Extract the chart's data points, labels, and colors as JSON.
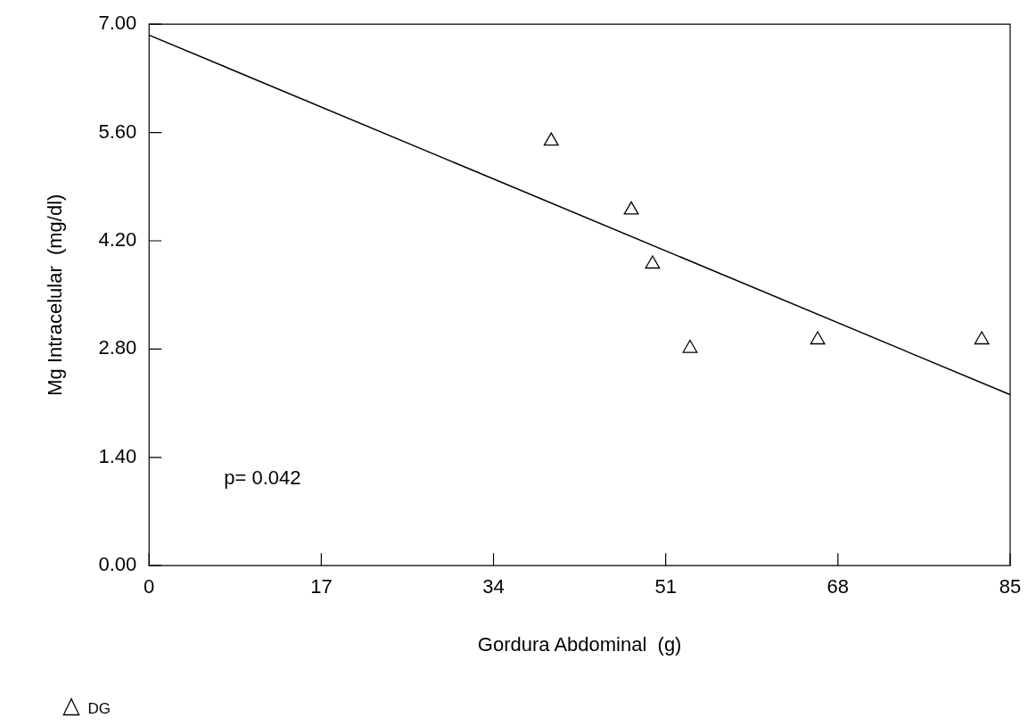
{
  "chart_data": {
    "type": "scatter",
    "xlabel": "Gordura Abdominal  (g)",
    "ylabel": "Mg Intracelular  (mg/dl)",
    "series": [
      {
        "name": "DG",
        "color": "#000000",
        "x": [
          39.7,
          47.6,
          49.7,
          53.4,
          66.0,
          82.2
        ],
        "values": [
          5.49,
          4.6,
          3.9,
          2.81,
          2.92,
          2.92
        ],
        "marker": "triangle"
      },
      {
        "type": "line",
        "color": "#000000",
        "x": [
          0,
          85
        ],
        "values": [
          6.86,
          2.21
        ],
        "marker": "none",
        "line_style": "solid"
      }
    ],
    "xlim": [
      0,
      85
    ],
    "xticks": [
      0,
      17,
      34,
      51,
      68,
      85
    ],
    "ylim": [
      0,
      7
    ],
    "yticks": [
      {
        "value": 0,
        "label": "0.00"
      },
      {
        "value": 1.4,
        "label": "1.40"
      },
      {
        "value": 2.8,
        "label": "2.80"
      },
      {
        "value": 4.2,
        "label": "4.20"
      },
      {
        "value": 5.6,
        "label": "5.60"
      },
      {
        "value": 7,
        "label": "7.00"
      }
    ],
    "annotations": [
      "p= 0.042"
    ],
    "grid": false,
    "legend": "bottom left"
  }
}
